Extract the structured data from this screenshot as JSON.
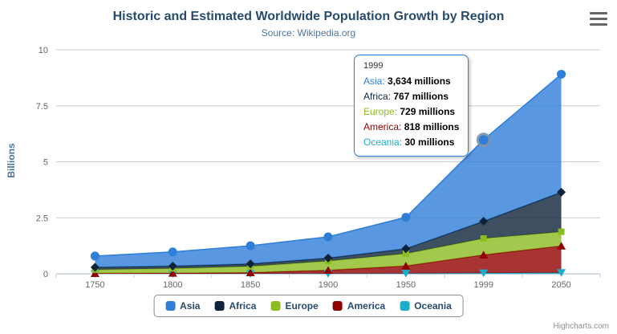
{
  "chart_data": {
    "type": "area",
    "stacking": "normal",
    "title": "Historic and Estimated Worldwide Population Growth by Region",
    "subtitle": "Source: Wikipedia.org",
    "categories": [
      "1750",
      "1800",
      "1850",
      "1900",
      "1950",
      "1999",
      "2050"
    ],
    "xlabel": "",
    "ylabel": "Billions",
    "ylim": [
      0,
      10
    ],
    "yticks": [
      0,
      2.5,
      5,
      7.5,
      10
    ],
    "grid": true,
    "legend_position": "bottom",
    "values_unit": "millions",
    "series": [
      {
        "name": "Asia",
        "color": "#2f7ed8",
        "marker": "circle",
        "values_millions": [
          502,
          635,
          809,
          947,
          1402,
          3634,
          5268
        ]
      },
      {
        "name": "Africa",
        "color": "#0d233a",
        "marker": "diamond",
        "values_millions": [
          106,
          107,
          111,
          133,
          221,
          767,
          1766
        ]
      },
      {
        "name": "Europe",
        "color": "#8bbc21",
        "marker": "square",
        "values_millions": [
          163,
          203,
          276,
          408,
          547,
          729,
          628
        ]
      },
      {
        "name": "America",
        "color": "#910000",
        "marker": "triangle",
        "values_millions": [
          18,
          31,
          54,
          156,
          339,
          818,
          1201
        ]
      },
      {
        "name": "Oceania",
        "color": "#1aadce",
        "marker": "triangle-down",
        "values_millions": [
          2,
          2,
          2,
          6,
          13,
          30,
          46
        ]
      }
    ],
    "stack_order_bottom_to_top": [
      "Oceania",
      "America",
      "Europe",
      "Africa",
      "Asia"
    ]
  },
  "tooltip": {
    "header": "1999",
    "border_color": "#2f7ed8",
    "hover_point": {
      "series": "Asia",
      "category": "1999"
    },
    "rows": [
      {
        "label": "Asia:",
        "value": "3,634 millions",
        "color": "#2f7ed8"
      },
      {
        "label": "Africa:",
        "value": "767 millions",
        "color": "#0d233a"
      },
      {
        "label": "Europe:",
        "value": "729 millions",
        "color": "#8bbc21"
      },
      {
        "label": "America:",
        "value": "818 millions",
        "color": "#910000"
      },
      {
        "label": "Oceania:",
        "value": "30 millions",
        "color": "#1aadce"
      }
    ]
  },
  "credits": {
    "text": "Highcharts.com"
  }
}
